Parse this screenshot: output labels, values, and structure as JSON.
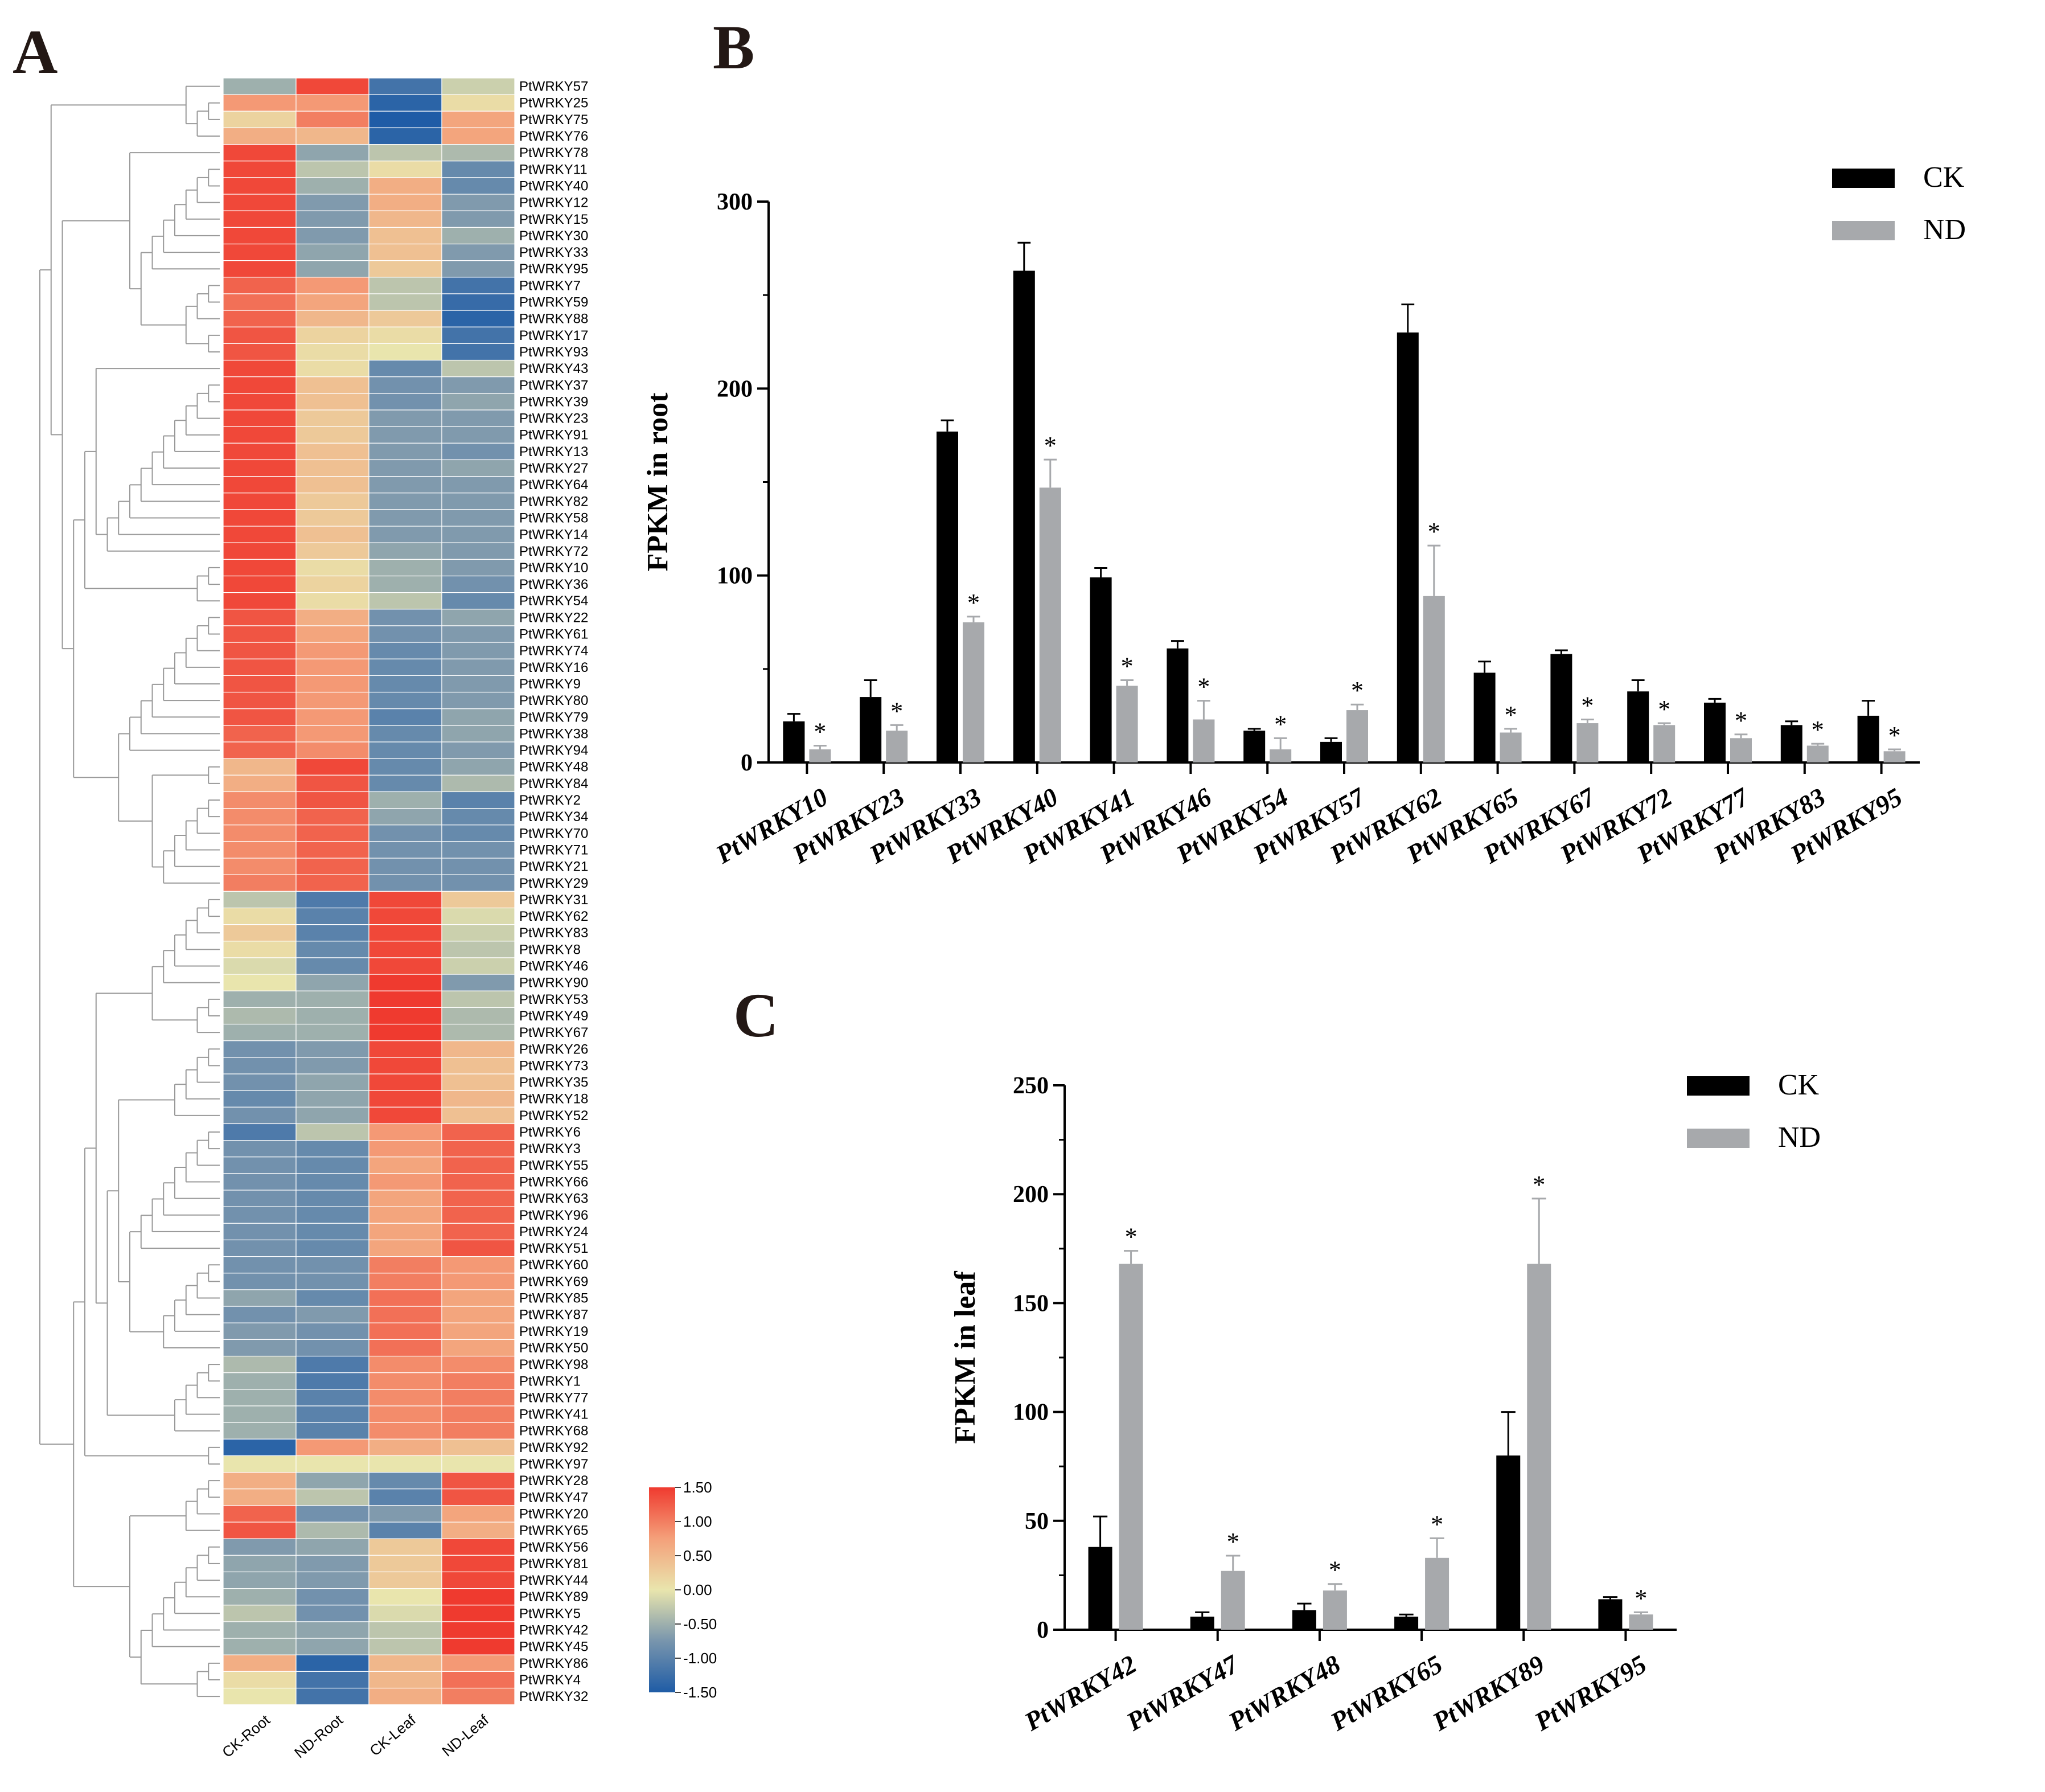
{
  "panels": {
    "a": "A",
    "b": "B",
    "c": "C"
  },
  "chart_data": [
    {
      "type": "heatmap",
      "panel": "A",
      "columns": [
        "CK-Root",
        "ND-Root",
        "CK-Leaf",
        "ND-Leaf"
      ],
      "rows": [
        "PtWRKY57",
        "PtWRKY25",
        "PtWRKY75",
        "PtWRKY76",
        "PtWRKY78",
        "PtWRKY11",
        "PtWRKY40",
        "PtWRKY12",
        "PtWRKY15",
        "PtWRKY30",
        "PtWRKY33",
        "PtWRKY95",
        "PtWRKY7",
        "PtWRKY59",
        "PtWRKY88",
        "PtWRKY17",
        "PtWRKY93",
        "PtWRKY43",
        "PtWRKY37",
        "PtWRKY39",
        "PtWRKY23",
        "PtWRKY91",
        "PtWRKY13",
        "PtWRKY27",
        "PtWRKY64",
        "PtWRKY82",
        "PtWRKY58",
        "PtWRKY14",
        "PtWRKY72",
        "PtWRKY10",
        "PtWRKY36",
        "PtWRKY54",
        "PtWRKY22",
        "PtWRKY61",
        "PtWRKY74",
        "PtWRKY16",
        "PtWRKY9",
        "PtWRKY80",
        "PtWRKY79",
        "PtWRKY38",
        "PtWRKY94",
        "PtWRKY48",
        "PtWRKY84",
        "PtWRKY2",
        "PtWRKY34",
        "PtWRKY70",
        "PtWRKY71",
        "PtWRKY21",
        "PtWRKY29",
        "PtWRKY31",
        "PtWRKY62",
        "PtWRKY83",
        "PtWRKY8",
        "PtWRKY46",
        "PtWRKY90",
        "PtWRKY53",
        "PtWRKY49",
        "PtWRKY67",
        "PtWRKY26",
        "PtWRKY73",
        "PtWRKY35",
        "PtWRKY18",
        "PtWRKY52",
        "PtWRKY6",
        "PtWRKY3",
        "PtWRKY55",
        "PtWRKY66",
        "PtWRKY63",
        "PtWRKY96",
        "PtWRKY24",
        "PtWRKY51",
        "PtWRKY60",
        "PtWRKY69",
        "PtWRKY85",
        "PtWRKY87",
        "PtWRKY19",
        "PtWRKY50",
        "PtWRKY98",
        "PtWRKY1",
        "PtWRKY77",
        "PtWRKY41",
        "PtWRKY68",
        "PtWRKY92",
        "PtWRKY97",
        "PtWRKY28",
        "PtWRKY47",
        "PtWRKY20",
        "PtWRKY65",
        "PtWRKY56",
        "PtWRKY81",
        "PtWRKY44",
        "PtWRKY89",
        "PtWRKY5",
        "PtWRKY42",
        "PtWRKY45",
        "PtWRKY86",
        "PtWRKY4",
        "PtWRKY32"
      ],
      "values": [
        [
          -0.5,
          1.4,
          -1.2,
          -0.2
        ],
        [
          0.8,
          0.8,
          -1.4,
          0.1
        ],
        [
          0.2,
          1.0,
          -1.5,
          0.7
        ],
        [
          0.6,
          0.5,
          -1.4,
          0.7
        ],
        [
          1.4,
          -0.6,
          -0.3,
          -0.4
        ],
        [
          1.4,
          -0.3,
          0.1,
          -0.9
        ],
        [
          1.4,
          -0.5,
          0.6,
          -0.9
        ],
        [
          1.4,
          -0.7,
          0.6,
          -0.7
        ],
        [
          1.4,
          -0.7,
          0.5,
          -0.7
        ],
        [
          1.4,
          -0.7,
          0.4,
          -0.5
        ],
        [
          1.4,
          -0.6,
          0.4,
          -0.7
        ],
        [
          1.4,
          -0.6,
          0.3,
          -0.7
        ],
        [
          1.2,
          0.8,
          -0.3,
          -1.2
        ],
        [
          1.1,
          0.7,
          -0.3,
          -1.3
        ],
        [
          1.2,
          0.5,
          0.3,
          -1.4
        ],
        [
          1.3,
          0.2,
          0.1,
          -1.2
        ],
        [
          1.3,
          0.1,
          0.0,
          -1.2
        ],
        [
          1.4,
          0.1,
          -0.9,
          -0.3
        ],
        [
          1.4,
          0.4,
          -0.8,
          -0.7
        ],
        [
          1.4,
          0.4,
          -0.8,
          -0.6
        ],
        [
          1.4,
          0.3,
          -0.7,
          -0.7
        ],
        [
          1.4,
          0.3,
          -0.7,
          -0.7
        ],
        [
          1.4,
          0.4,
          -0.7,
          -0.8
        ],
        [
          1.4,
          0.4,
          -0.7,
          -0.6
        ],
        [
          1.4,
          0.4,
          -0.7,
          -0.7
        ],
        [
          1.4,
          0.3,
          -0.7,
          -0.7
        ],
        [
          1.4,
          0.3,
          -0.7,
          -0.7
        ],
        [
          1.4,
          0.4,
          -0.7,
          -0.7
        ],
        [
          1.4,
          0.3,
          -0.6,
          -0.7
        ],
        [
          1.4,
          0.1,
          -0.5,
          -0.7
        ],
        [
          1.4,
          0.2,
          -0.5,
          -0.8
        ],
        [
          1.4,
          0.1,
          -0.3,
          -0.9
        ],
        [
          1.3,
          0.6,
          -0.8,
          -0.6
        ],
        [
          1.3,
          0.7,
          -0.8,
          -0.7
        ],
        [
          1.3,
          0.8,
          -0.9,
          -0.7
        ],
        [
          1.3,
          0.8,
          -0.9,
          -0.7
        ],
        [
          1.3,
          0.8,
          -0.9,
          -0.7
        ],
        [
          1.3,
          0.8,
          -0.9,
          -0.7
        ],
        [
          1.3,
          0.8,
          -1.0,
          -0.6
        ],
        [
          1.2,
          0.8,
          -0.9,
          -0.6
        ],
        [
          1.2,
          0.9,
          -0.9,
          -0.7
        ],
        [
          0.5,
          1.4,
          -0.9,
          -0.6
        ],
        [
          0.6,
          1.3,
          -0.9,
          -0.4
        ],
        [
          0.9,
          1.3,
          -0.5,
          -1.0
        ],
        [
          0.9,
          1.2,
          -0.6,
          -0.9
        ],
        [
          0.9,
          1.2,
          -0.8,
          -0.9
        ],
        [
          0.9,
          1.2,
          -0.8,
          -0.8
        ],
        [
          0.9,
          1.2,
          -0.8,
          -0.8
        ],
        [
          1.0,
          1.2,
          -0.8,
          -0.8
        ],
        [
          -0.3,
          -1.1,
          1.4,
          0.3
        ],
        [
          0.1,
          -1.0,
          1.4,
          -0.1
        ],
        [
          0.3,
          -1.0,
          1.4,
          -0.2
        ],
        [
          0.1,
          -0.9,
          1.4,
          -0.3
        ],
        [
          -0.1,
          -0.9,
          1.4,
          -0.2
        ],
        [
          0.0,
          -0.6,
          1.5,
          -0.7
        ],
        [
          -0.5,
          -0.5,
          1.5,
          -0.3
        ],
        [
          -0.4,
          -0.5,
          1.5,
          -0.4
        ],
        [
          -0.5,
          -0.5,
          1.5,
          -0.4
        ],
        [
          -0.8,
          -0.7,
          1.4,
          0.5
        ],
        [
          -0.8,
          -0.7,
          1.4,
          0.4
        ],
        [
          -0.8,
          -0.6,
          1.4,
          0.4
        ],
        [
          -0.9,
          -0.6,
          1.4,
          0.5
        ],
        [
          -0.8,
          -0.6,
          1.4,
          0.4
        ],
        [
          -1.1,
          -0.3,
          0.8,
          1.2
        ],
        [
          -0.8,
          -0.9,
          0.8,
          1.2
        ],
        [
          -0.8,
          -0.9,
          0.7,
          1.2
        ],
        [
          -0.8,
          -0.9,
          0.8,
          1.2
        ],
        [
          -0.8,
          -0.9,
          0.7,
          1.2
        ],
        [
          -0.8,
          -0.9,
          0.7,
          1.2
        ],
        [
          -0.8,
          -0.9,
          0.7,
          1.2
        ],
        [
          -0.8,
          -0.9,
          0.7,
          1.3
        ],
        [
          -0.8,
          -0.8,
          1.0,
          0.8
        ],
        [
          -0.8,
          -0.8,
          1.0,
          0.8
        ],
        [
          -0.6,
          -0.9,
          1.1,
          0.7
        ],
        [
          -0.8,
          -0.7,
          1.1,
          0.7
        ],
        [
          -0.7,
          -0.8,
          1.1,
          0.7
        ],
        [
          -0.7,
          -0.8,
          1.1,
          0.7
        ],
        [
          -0.4,
          -1.1,
          0.9,
          0.9
        ],
        [
          -0.5,
          -1.1,
          0.9,
          1.0
        ],
        [
          -0.5,
          -1.0,
          0.9,
          1.0
        ],
        [
          -0.5,
          -1.0,
          0.9,
          1.0
        ],
        [
          -0.5,
          -1.0,
          0.9,
          1.0
        ],
        [
          -1.4,
          0.8,
          0.6,
          0.4
        ],
        [
          0.0,
          0.0,
          0.0,
          0.0
        ],
        [
          0.6,
          -0.6,
          -0.9,
          1.3
        ],
        [
          0.6,
          -0.3,
          -1.0,
          1.3
        ],
        [
          1.2,
          -0.8,
          -0.7,
          0.7
        ],
        [
          1.3,
          -0.4,
          -1.0,
          0.6
        ],
        [
          -0.7,
          -0.6,
          0.3,
          1.4
        ],
        [
          -0.6,
          -0.7,
          0.3,
          1.4
        ],
        [
          -0.6,
          -0.7,
          0.3,
          1.4
        ],
        [
          -0.5,
          -0.8,
          0.0,
          1.5
        ],
        [
          -0.3,
          -0.8,
          -0.1,
          1.5
        ],
        [
          -0.5,
          -0.6,
          -0.3,
          1.5
        ],
        [
          -0.5,
          -0.6,
          -0.3,
          1.5
        ],
        [
          0.6,
          -1.4,
          0.5,
          0.8
        ],
        [
          0.1,
          -1.2,
          0.5,
          1.1
        ],
        [
          0.0,
          -1.2,
          0.6,
          1.0
        ]
      ],
      "colorbar": {
        "ticks": [
          "1.50",
          "1.00",
          "0.50",
          "0.00",
          "-0.50",
          "-1.00",
          "-1.50"
        ],
        "range": [
          -1.5,
          1.5
        ],
        "colors": [
          "#1f5ca6",
          "#e9e5ad",
          "#ef3a2f"
        ]
      }
    },
    {
      "type": "bar",
      "panel": "B",
      "ylabel": "FPKM in root",
      "ylim": [
        0,
        300
      ],
      "yticks": [
        "0",
        "100",
        "200",
        "300"
      ],
      "categories": [
        "PtWRKY10",
        "PtWRKY23",
        "PtWRKY33",
        "PtWRKY40",
        "PtWRKY41",
        "PtWRKY46",
        "PtWRKY54",
        "PtWRKY57",
        "PtWRKY62",
        "PtWRKY65",
        "PtWRKY67",
        "PtWRKY72",
        "PtWRKY77",
        "PtWRKY83",
        "PtWRKY95"
      ],
      "series": [
        {
          "name": "CK",
          "color": "#000000",
          "values": [
            22,
            35,
            177,
            263,
            99,
            61,
            17,
            11,
            230,
            48,
            58,
            38,
            32,
            20,
            25
          ],
          "errors": [
            4,
            9,
            6,
            15,
            5,
            4,
            1,
            2,
            15,
            6,
            2,
            6,
            2,
            2,
            8
          ]
        },
        {
          "name": "ND",
          "color": "#a7a9ac",
          "values": [
            7,
            17,
            75,
            147,
            41,
            23,
            7,
            28,
            89,
            16,
            21,
            20,
            13,
            9,
            6
          ],
          "errors": [
            2,
            3,
            3,
            15,
            3,
            10,
            6,
            3,
            27,
            2,
            2,
            1,
            2,
            1,
            1
          ]
        }
      ],
      "significance": "*",
      "legend": [
        "CK",
        "ND"
      ]
    },
    {
      "type": "bar",
      "panel": "C",
      "ylabel": "FPKM in leaf",
      "ylim": [
        0,
        250
      ],
      "yticks": [
        "0",
        "50",
        "100",
        "150",
        "200",
        "250"
      ],
      "categories": [
        "PtWRKY42",
        "PtWRKY47",
        "PtWRKY48",
        "PtWRKY65",
        "PtWRKY89",
        "PtWRKY95"
      ],
      "series": [
        {
          "name": "CK",
          "color": "#000000",
          "values": [
            38,
            6,
            9,
            6,
            80,
            14
          ],
          "errors": [
            14,
            2,
            3,
            1,
            20,
            1
          ]
        },
        {
          "name": "ND",
          "color": "#a7a9ac",
          "values": [
            168,
            27,
            18,
            33,
            168,
            7
          ],
          "errors": [
            6,
            7,
            3,
            9,
            30,
            1
          ]
        }
      ],
      "significance": "*",
      "legend": [
        "CK",
        "ND"
      ]
    }
  ]
}
